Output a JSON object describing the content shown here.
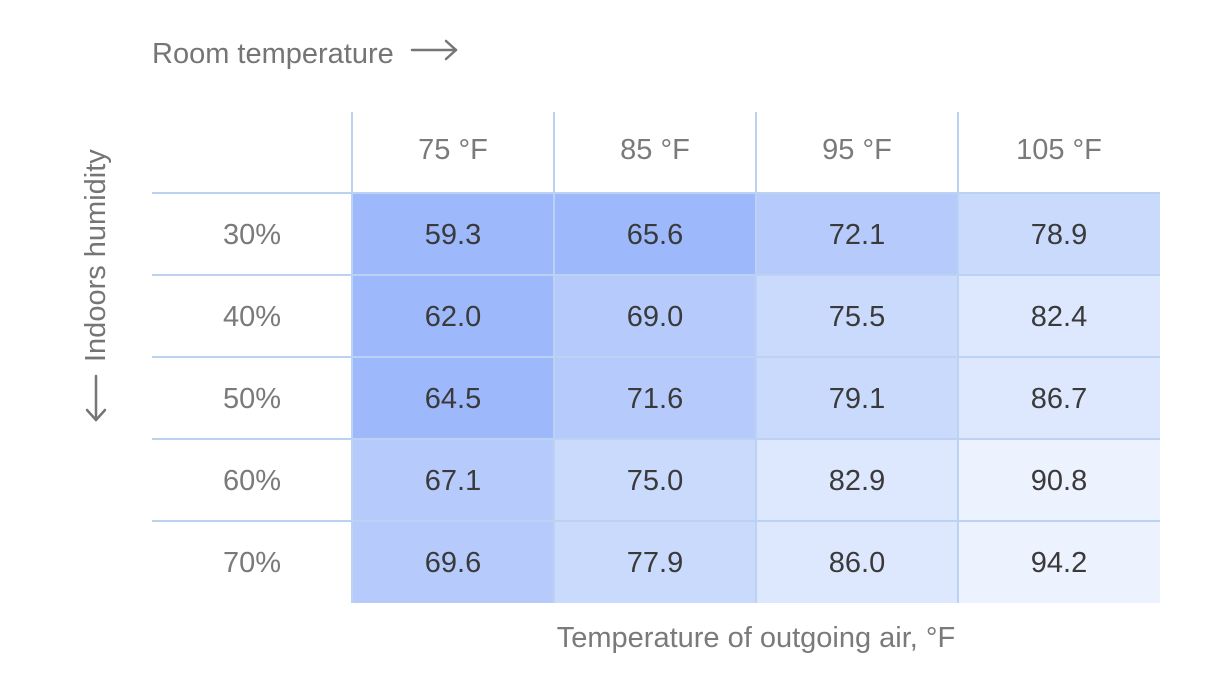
{
  "chart_data": {
    "type": "heatmap",
    "col_axis_title": "Room temperature",
    "row_axis_title": "Indoors humidity",
    "xlabel": "Temperature of outgoing air, °F",
    "columns": [
      "75 °F",
      "85 °F",
      "95 °F",
      "105 °F"
    ],
    "rows": [
      "30%",
      "40%",
      "50%",
      "60%",
      "70%"
    ],
    "values": [
      [
        "59.3",
        "65.6",
        "72.1",
        "78.9"
      ],
      [
        "62.0",
        "69.0",
        "75.5",
        "82.4"
      ],
      [
        "64.5",
        "71.6",
        "79.1",
        "86.7"
      ],
      [
        "67.1",
        "75.0",
        "82.9",
        "90.8"
      ],
      [
        "69.6",
        "77.9",
        "86.0",
        "94.2"
      ]
    ],
    "color_scale": {
      "low": "#9db8fb",
      "high": "#ecf2fe",
      "steps": [
        "#9db8fb",
        "#b6cbfc",
        "#cadafd",
        "#dde7fd",
        "#ecf2fe"
      ]
    },
    "grid_color": "#bcd2f2",
    "text_color": "#3a3a3a",
    "label_color": "#7a7a7a"
  }
}
